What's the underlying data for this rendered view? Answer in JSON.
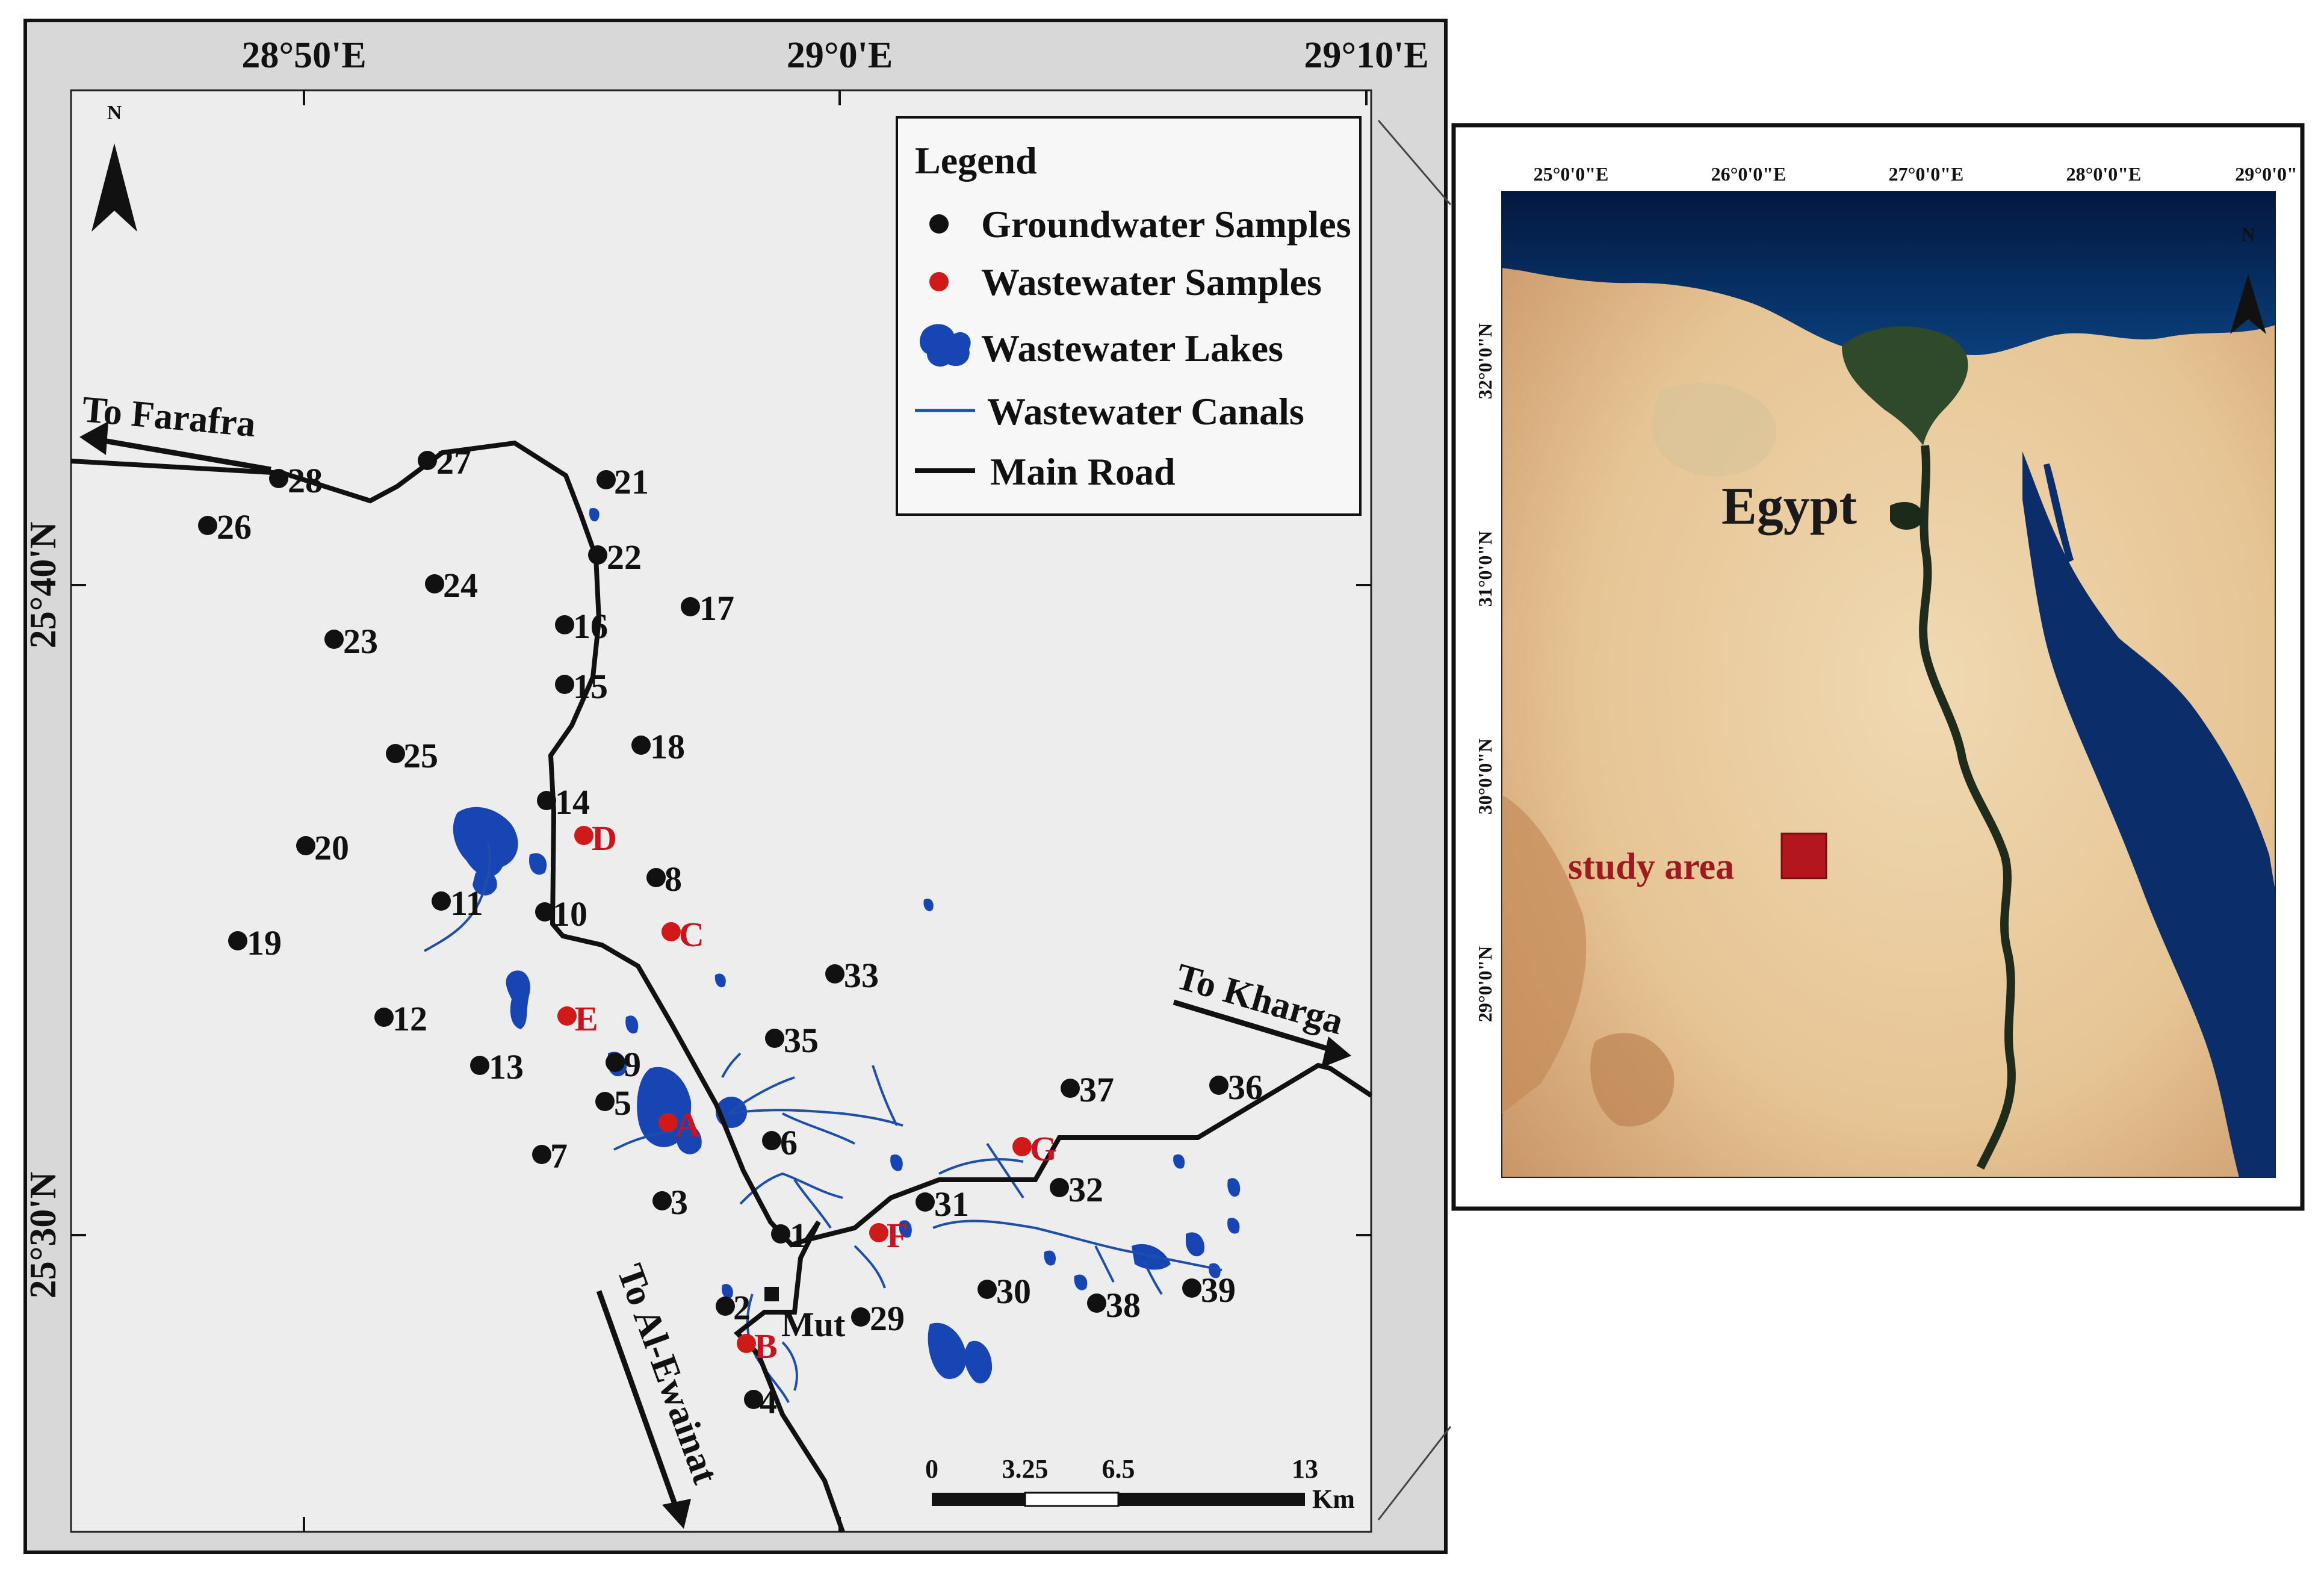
{
  "main_map": {
    "longitude_ticks": [
      "28°50'E",
      "29°0'E",
      "29°10'E"
    ],
    "latitude_ticks": [
      "25°40'N",
      "25°30'N"
    ],
    "north_label": "N",
    "legend": {
      "title": "Legend",
      "items": [
        {
          "label": "Groundwater Samples",
          "symbol": "black-dot"
        },
        {
          "label": "Wastewater Samples",
          "symbol": "red-dot"
        },
        {
          "label": "Wastewater Lakes",
          "symbol": "blue-lake"
        },
        {
          "label": "Wastewater Canals",
          "symbol": "blue-line"
        },
        {
          "label": "Main Road",
          "symbol": "black-line"
        }
      ]
    },
    "road_labels": {
      "farafra": "To Farafra",
      "kharga": "To Kharga",
      "ewainat": "To Al-Ewainat"
    },
    "town_label": "Mut",
    "groundwater_samples": [
      "1",
      "2",
      "3",
      "4",
      "5",
      "6",
      "7",
      "8",
      "9",
      "10",
      "11",
      "12",
      "13",
      "14",
      "15",
      "16",
      "17",
      "18",
      "19",
      "20",
      "21",
      "22",
      "23",
      "24",
      "25",
      "26",
      "27",
      "28",
      "29",
      "30",
      "31",
      "32",
      "33",
      "35",
      "36",
      "37",
      "38",
      "39"
    ],
    "wastewater_samples": [
      "A",
      "B",
      "C",
      "D",
      "E",
      "F",
      "G"
    ],
    "scale_bar": {
      "ticks": [
        "0",
        "3.25",
        "6.5",
        "13"
      ],
      "unit": "Km"
    },
    "colors": {
      "groundwater": "#111111",
      "wastewater": "#d01a1a",
      "lakes": "#1746b4",
      "canals": "#1d4ea8",
      "road": "#111111",
      "map_bg": "#ededed"
    }
  },
  "inset_map": {
    "longitude_ticks": [
      "25°0'0\"E",
      "26°0'0\"E",
      "27°0'0\"E",
      "28°0'0\"E",
      "29°0'0\""
    ],
    "latitude_ticks": [
      "32°0'0\"N",
      "31°0'0\"N",
      "30°0'0\"N",
      "29°0'0\"N"
    ],
    "country_label": "Egypt",
    "study_area_label": "study area",
    "north_label": "N",
    "study_area_color": "#b3161c"
  }
}
